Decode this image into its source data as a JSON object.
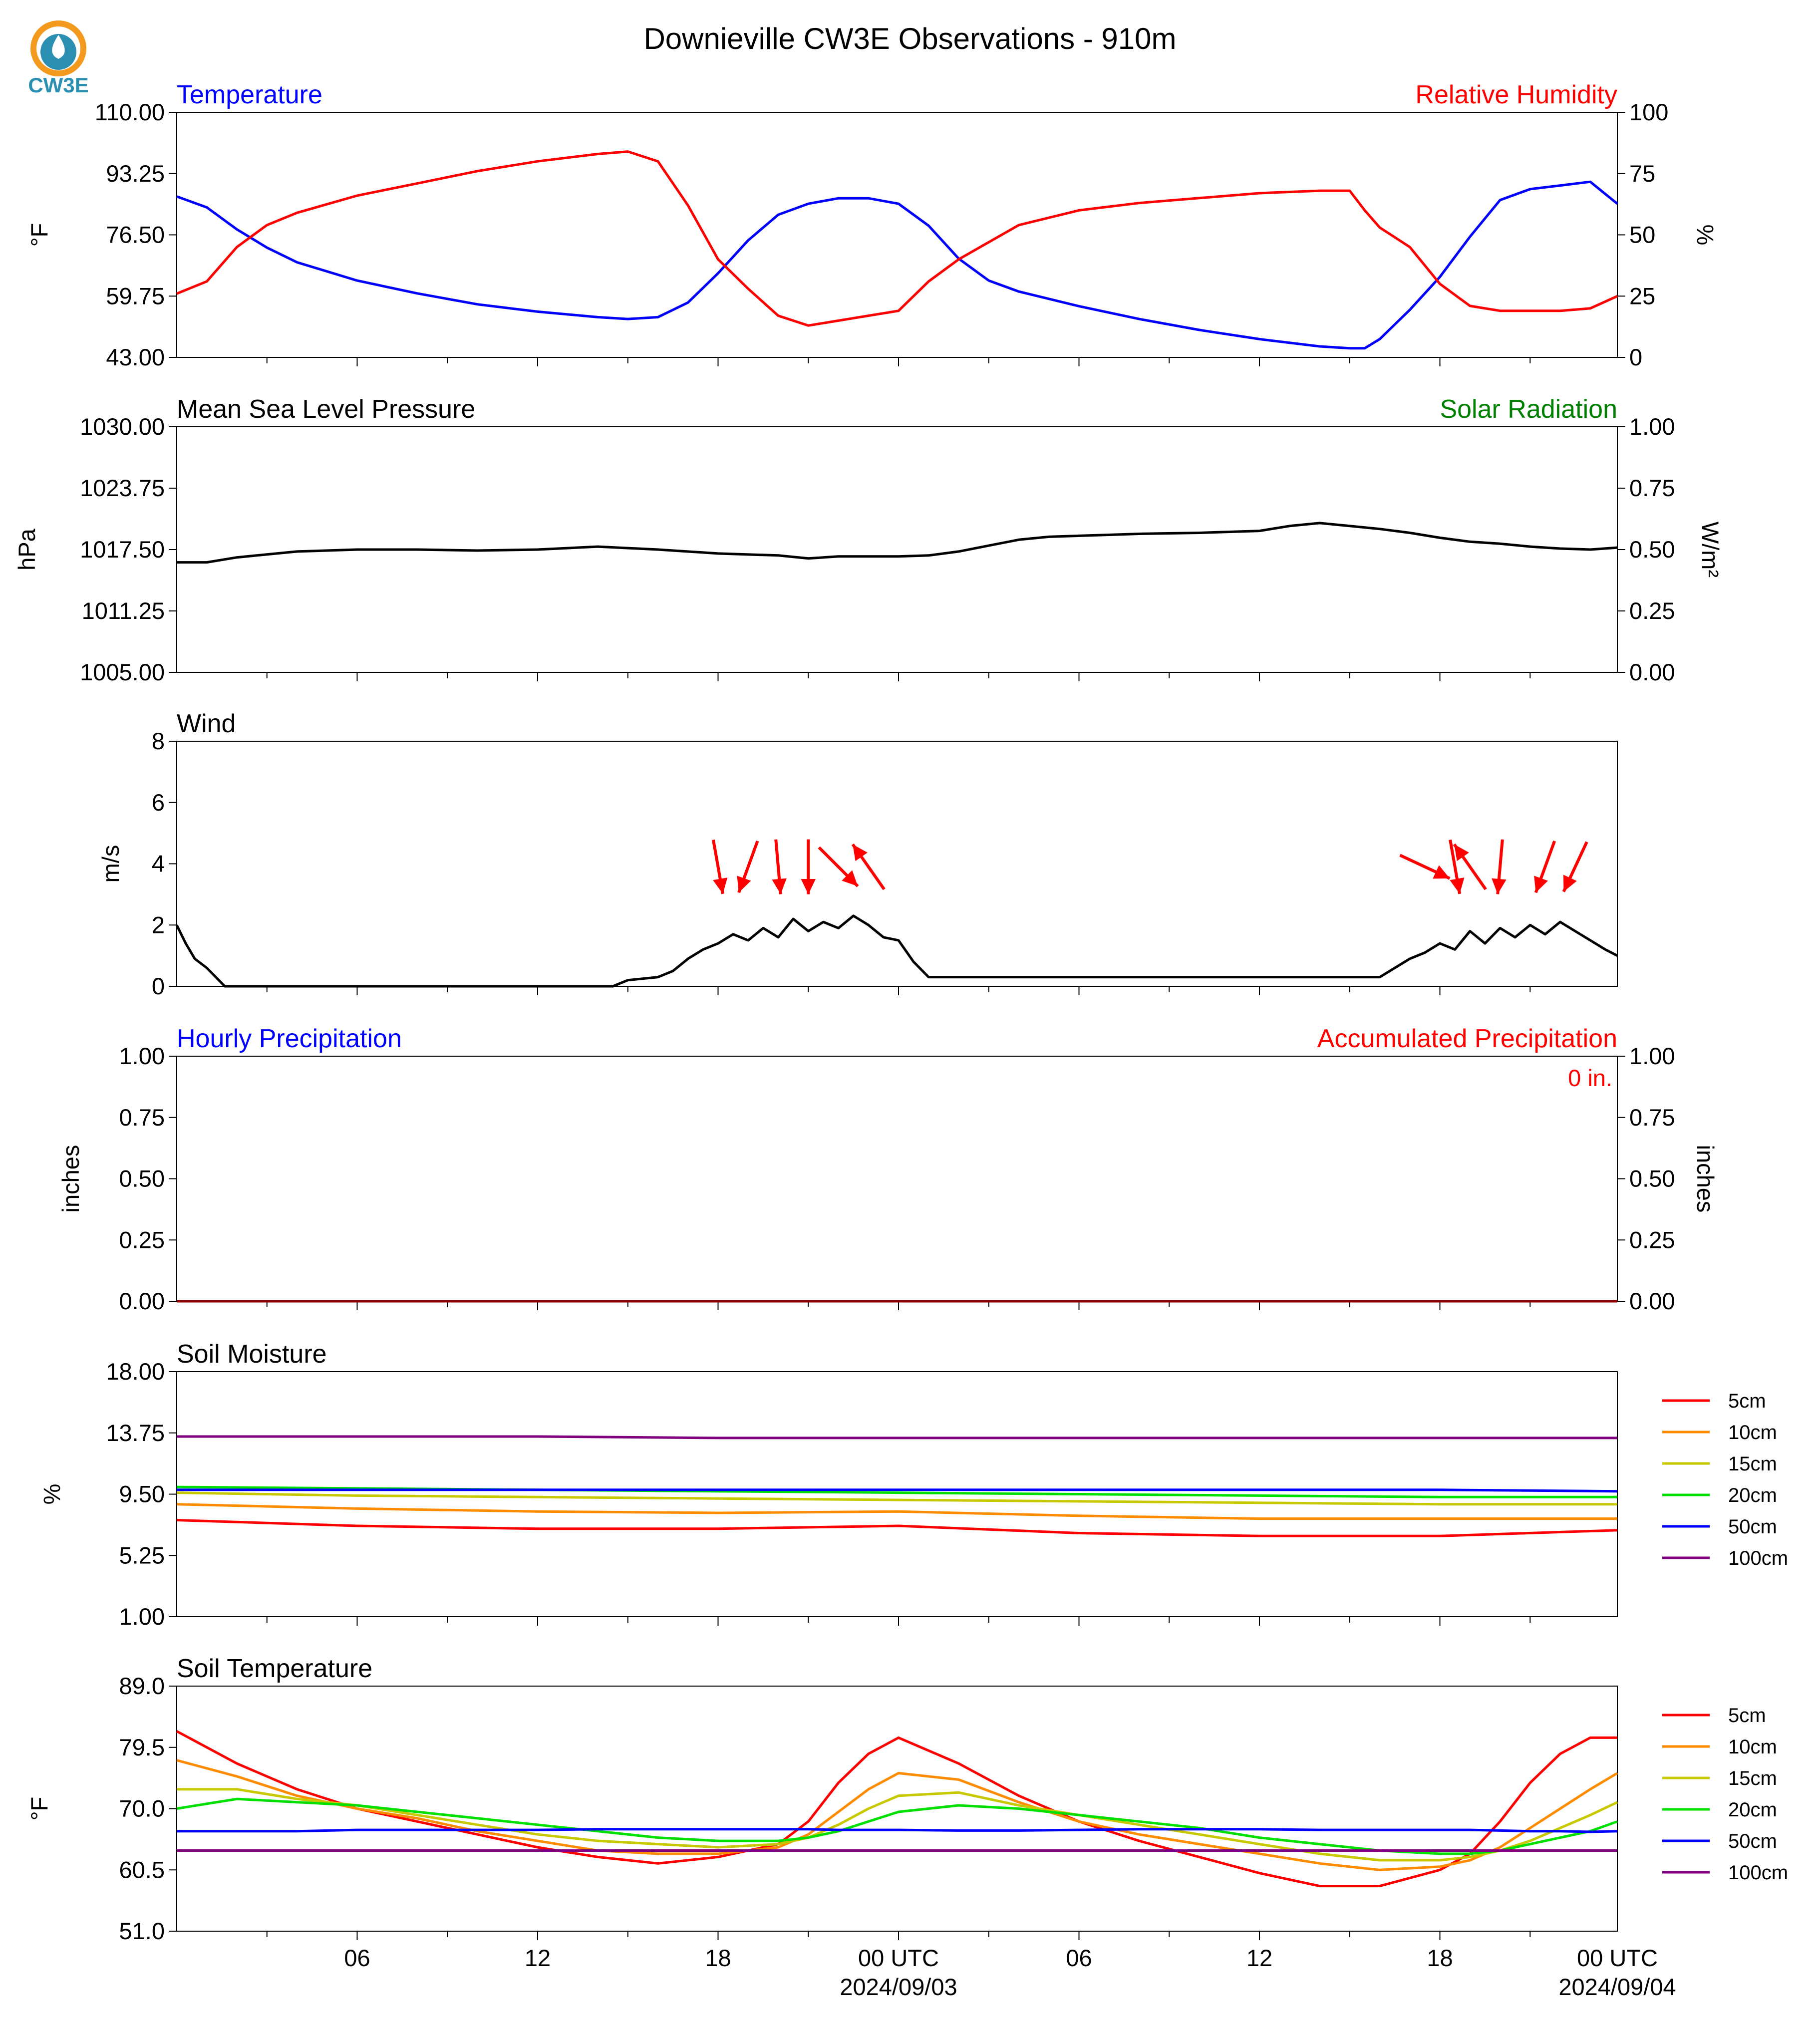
{
  "title": "Downieville CW3E Observations - 910m",
  "logo": {
    "text": "CW3E",
    "color": "#2a8fb0",
    "accent": "#f39a1e"
  },
  "x_axis": {
    "tick_labels": [
      "06",
      "12",
      "18",
      "00 UTC",
      "06",
      "12",
      "18",
      "00 UTC"
    ],
    "date_labels": [
      "2024/09/03",
      "2024/09/04"
    ]
  },
  "chart_data": [
    {
      "type": "line",
      "title_left": "Temperature",
      "title_right": "Relative Humidity",
      "ylabel": "°F",
      "y2label": "%",
      "ylim": [
        43,
        110
      ],
      "y2lim": [
        0,
        100
      ],
      "yticks": [
        "110.00",
        "93.25",
        "76.50",
        "59.75",
        "43.00"
      ],
      "y2ticks": [
        "100",
        "75",
        "50",
        "25",
        "0"
      ],
      "x_hours": [
        0,
        1,
        2,
        3,
        4,
        6,
        8,
        10,
        12,
        14,
        15,
        16,
        17,
        18,
        19,
        20,
        21,
        22,
        23,
        24,
        25,
        26,
        27,
        28,
        30,
        32,
        34,
        36,
        38,
        39,
        39.5,
        40,
        41,
        42,
        43,
        44,
        45,
        46,
        47,
        47.9
      ],
      "series": [
        {
          "name": "Temperature",
          "color": "#0000ff",
          "axis": "left",
          "values": [
            87,
            84,
            78,
            73,
            69,
            64,
            60.5,
            57.5,
            55.5,
            54,
            53.5,
            54,
            58,
            66,
            75,
            82,
            85,
            86.5,
            86.5,
            85,
            79,
            70,
            64,
            61,
            57,
            53.5,
            50.5,
            48,
            46,
            45.5,
            45.5,
            48,
            56,
            65,
            76,
            86,
            89,
            90,
            91,
            85
          ]
        },
        {
          "name": "Relative Humidity",
          "color": "#ff0000",
          "axis": "right",
          "values": [
            26,
            31,
            45,
            54,
            59,
            66,
            71,
            76,
            80,
            83,
            84,
            80,
            62,
            40,
            28,
            17,
            13,
            15,
            17,
            19,
            31,
            40,
            47,
            54,
            60,
            63,
            65,
            67,
            68,
            68,
            60,
            53,
            45,
            30,
            21,
            19,
            19,
            19,
            20,
            25
          ]
        }
      ]
    },
    {
      "type": "line",
      "title_left": "Mean Sea Level Pressure",
      "title_right": "Solar Radiation",
      "ylabel": "hPa",
      "y2label": "W/m²",
      "ylim": [
        1005,
        1030
      ],
      "y2lim": [
        0,
        1
      ],
      "yticks": [
        "1030.00",
        "1023.75",
        "1017.50",
        "1011.25",
        "1005.00"
      ],
      "y2ticks": [
        "1.00",
        "0.75",
        "0.50",
        "0.25",
        "0.00"
      ],
      "x_hours": [
        0,
        1,
        2,
        3,
        4,
        6,
        8,
        10,
        12,
        14,
        16,
        18,
        20,
        21,
        22,
        23,
        24,
        25,
        26,
        27,
        28,
        29,
        30,
        31,
        32,
        34,
        36,
        37,
        38,
        39,
        40,
        41,
        42,
        43,
        44,
        45,
        46,
        47,
        47.9
      ],
      "series": [
        {
          "name": "Mean Sea Level Pressure",
          "color": "#000000",
          "axis": "left",
          "values": [
            1016.2,
            1016.2,
            1016.7,
            1017.0,
            1017.3,
            1017.5,
            1017.5,
            1017.4,
            1017.5,
            1017.8,
            1017.5,
            1017.1,
            1016.9,
            1016.6,
            1016.8,
            1016.8,
            1016.8,
            1016.9,
            1017.3,
            1017.9,
            1018.5,
            1018.8,
            1018.9,
            1019.0,
            1019.1,
            1019.2,
            1019.4,
            1019.9,
            1020.2,
            1019.9,
            1019.6,
            1019.2,
            1018.7,
            1018.3,
            1018.1,
            1017.8,
            1017.6,
            1017.5,
            1017.7
          ]
        }
      ]
    },
    {
      "type": "line",
      "title_left": "Wind",
      "ylabel": "m/s",
      "ylim": [
        0,
        8
      ],
      "yticks": [
        "8",
        "6",
        "4",
        "2",
        "0"
      ],
      "x_hours": [
        0,
        0.3,
        0.6,
        1,
        1.3,
        1.6,
        14.5,
        15,
        16,
        16.5,
        17,
        17.5,
        18,
        18.5,
        19,
        19.5,
        20,
        20.5,
        21,
        21.5,
        22,
        22.5,
        23,
        23.5,
        24,
        24.5,
        25,
        40,
        41,
        41.5,
        42,
        42.5,
        43,
        43.5,
        44,
        44.5,
        45,
        45.5,
        46,
        46.5,
        47,
        47.5,
        47.9
      ],
      "series": [
        {
          "name": "Wind",
          "color": "#000000",
          "axis": "left",
          "values": [
            2.0,
            1.4,
            0.9,
            0.6,
            0.3,
            0,
            0,
            0.2,
            0.3,
            0.5,
            0.9,
            1.2,
            1.4,
            1.7,
            1.5,
            1.9,
            1.6,
            2.2,
            1.8,
            2.1,
            1.9,
            2.3,
            2.0,
            1.6,
            1.5,
            0.8,
            0.3,
            0.3,
            0.9,
            1.1,
            1.4,
            1.2,
            1.8,
            1.4,
            1.9,
            1.6,
            2.0,
            1.7,
            2.1,
            1.8,
            1.5,
            1.2,
            1.0
          ]
        }
      ],
      "arrows": [
        {
          "hour": 18.0,
          "dir_deg": 10
        },
        {
          "hour": 19.0,
          "dir_deg": 340
        },
        {
          "hour": 20.0,
          "dir_deg": 5
        },
        {
          "hour": 21.0,
          "dir_deg": 0
        },
        {
          "hour": 22.0,
          "dir_deg": 45
        },
        {
          "hour": 23.0,
          "dir_deg": 215
        },
        {
          "hour": 41.5,
          "dir_deg": 65
        },
        {
          "hour": 42.5,
          "dir_deg": 10
        },
        {
          "hour": 43.0,
          "dir_deg": 215
        },
        {
          "hour": 44.0,
          "dir_deg": 355
        },
        {
          "hour": 45.5,
          "dir_deg": 340
        },
        {
          "hour": 46.5,
          "dir_deg": 335
        }
      ]
    },
    {
      "type": "line",
      "title_left": "Hourly Precipitation",
      "title_right": "Accumulated Precipitation",
      "annotation": "0 in.",
      "ylabel": "inches",
      "y2label": "inches",
      "ylim": [
        0,
        1
      ],
      "y2lim": [
        0,
        1
      ],
      "yticks": [
        "1.00",
        "0.75",
        "0.50",
        "0.25",
        "0.00"
      ],
      "y2ticks": [
        "1.00",
        "0.75",
        "0.50",
        "0.25",
        "0.00"
      ],
      "x_hours": [
        0,
        47.9
      ],
      "series": [
        {
          "name": "Accumulated Precipitation",
          "color": "#8b0000",
          "axis": "left",
          "values": [
            0,
            0
          ]
        }
      ]
    },
    {
      "type": "line",
      "title_left": "Soil Moisture",
      "ylabel": "%",
      "ylim": [
        1,
        18
      ],
      "yticks": [
        "18.00",
        "13.75",
        "9.50",
        "5.25",
        "1.00"
      ],
      "x_hours": [
        0,
        6,
        12,
        18,
        24,
        30,
        36,
        42,
        47.9
      ],
      "legend": [
        "5cm",
        "10cm",
        "15cm",
        "20cm",
        "50cm",
        "100cm"
      ],
      "series": [
        {
          "name": "5cm",
          "color": "#ff0000",
          "values": [
            7.7,
            7.3,
            7.1,
            7.1,
            7.3,
            6.8,
            6.6,
            6.6,
            7.0
          ]
        },
        {
          "name": "10cm",
          "color": "#ff8c00",
          "values": [
            8.8,
            8.5,
            8.3,
            8.2,
            8.3,
            8.0,
            7.8,
            7.8,
            7.8
          ]
        },
        {
          "name": "15cm",
          "color": "#c8c800",
          "values": [
            9.6,
            9.4,
            9.3,
            9.2,
            9.1,
            9.0,
            8.9,
            8.8,
            8.8
          ]
        },
        {
          "name": "20cm",
          "color": "#00e000",
          "values": [
            10.0,
            9.9,
            9.8,
            9.7,
            9.6,
            9.5,
            9.4,
            9.3,
            9.3
          ]
        },
        {
          "name": "50cm",
          "color": "#0000ff",
          "values": [
            9.8,
            9.8,
            9.8,
            9.8,
            9.8,
            9.8,
            9.8,
            9.8,
            9.7
          ]
        },
        {
          "name": "100cm",
          "color": "#800080",
          "values": [
            13.5,
            13.5,
            13.5,
            13.4,
            13.4,
            13.4,
            13.4,
            13.4,
            13.4
          ]
        }
      ]
    },
    {
      "type": "line",
      "title_left": "Soil Temperature",
      "ylabel": "°F",
      "ylim": [
        51,
        89
      ],
      "yticks": [
        "89.0",
        "79.5",
        "70.0",
        "60.5",
        "51.0"
      ],
      "x_hours": [
        0,
        2,
        4,
        6,
        8,
        10,
        12,
        14,
        16,
        18,
        20,
        21,
        22,
        23,
        24,
        26,
        28,
        30,
        32,
        34,
        36,
        38,
        40,
        42,
        43,
        44,
        45,
        46,
        47,
        47.9
      ],
      "legend": [
        "5cm",
        "10cm",
        "15cm",
        "20cm",
        "50cm",
        "100cm"
      ],
      "series": [
        {
          "name": "5cm",
          "color": "#ff0000",
          "values": [
            82,
            77,
            73,
            70,
            68,
            66,
            64,
            62.5,
            61.5,
            62.5,
            64.5,
            68,
            74,
            78.5,
            81,
            77,
            72,
            68,
            65,
            62.5,
            60,
            58,
            58,
            60.5,
            63,
            68,
            74,
            78.5,
            81,
            81
          ]
        },
        {
          "name": "10cm",
          "color": "#ff8c00",
          "values": [
            77.5,
            75,
            72,
            70,
            68.5,
            66.5,
            65,
            63.5,
            63,
            63,
            64,
            66,
            69.5,
            73,
            75.5,
            74.5,
            71,
            68,
            66,
            64.5,
            63,
            61.5,
            60.5,
            61,
            62,
            64,
            67,
            70,
            73,
            75.5
          ]
        },
        {
          "name": "15cm",
          "color": "#c8c800",
          "values": [
            73,
            73,
            71.5,
            70.5,
            69,
            67.5,
            66,
            65,
            64.5,
            64,
            64.5,
            65.5,
            67.5,
            70,
            72,
            72.5,
            70.5,
            69,
            67.5,
            66,
            64.5,
            63,
            62,
            62,
            62.5,
            63.5,
            65,
            67,
            69,
            71
          ]
        },
        {
          "name": "20cm",
          "color": "#00e000",
          "values": [
            70,
            71.5,
            71,
            70.5,
            69.5,
            68.5,
            67.5,
            66.5,
            65.5,
            65,
            65,
            65.5,
            66.5,
            68,
            69.5,
            70.5,
            70,
            69,
            68,
            67,
            65.5,
            64.5,
            63.5,
            63,
            63,
            63.5,
            64.5,
            65.5,
            66.5,
            68
          ]
        },
        {
          "name": "50cm",
          "color": "#0000ff",
          "values": [
            66.5,
            66.5,
            66.5,
            66.7,
            66.7,
            66.7,
            66.7,
            66.8,
            66.8,
            66.8,
            66.8,
            66.8,
            66.7,
            66.7,
            66.7,
            66.6,
            66.6,
            66.7,
            66.8,
            66.8,
            66.8,
            66.7,
            66.7,
            66.7,
            66.7,
            66.6,
            66.5,
            66.5,
            66.4,
            66.5
          ]
        },
        {
          "name": "100cm",
          "color": "#800080",
          "values": [
            63.5,
            63.5,
            63.5,
            63.5,
            63.5,
            63.5,
            63.5,
            63.5,
            63.5,
            63.5,
            63.5,
            63.5,
            63.5,
            63.5,
            63.5,
            63.5,
            63.5,
            63.5,
            63.5,
            63.5,
            63.5,
            63.5,
            63.5,
            63.5,
            63.5,
            63.5,
            63.5,
            63.5,
            63.5,
            63.5
          ]
        }
      ]
    }
  ]
}
